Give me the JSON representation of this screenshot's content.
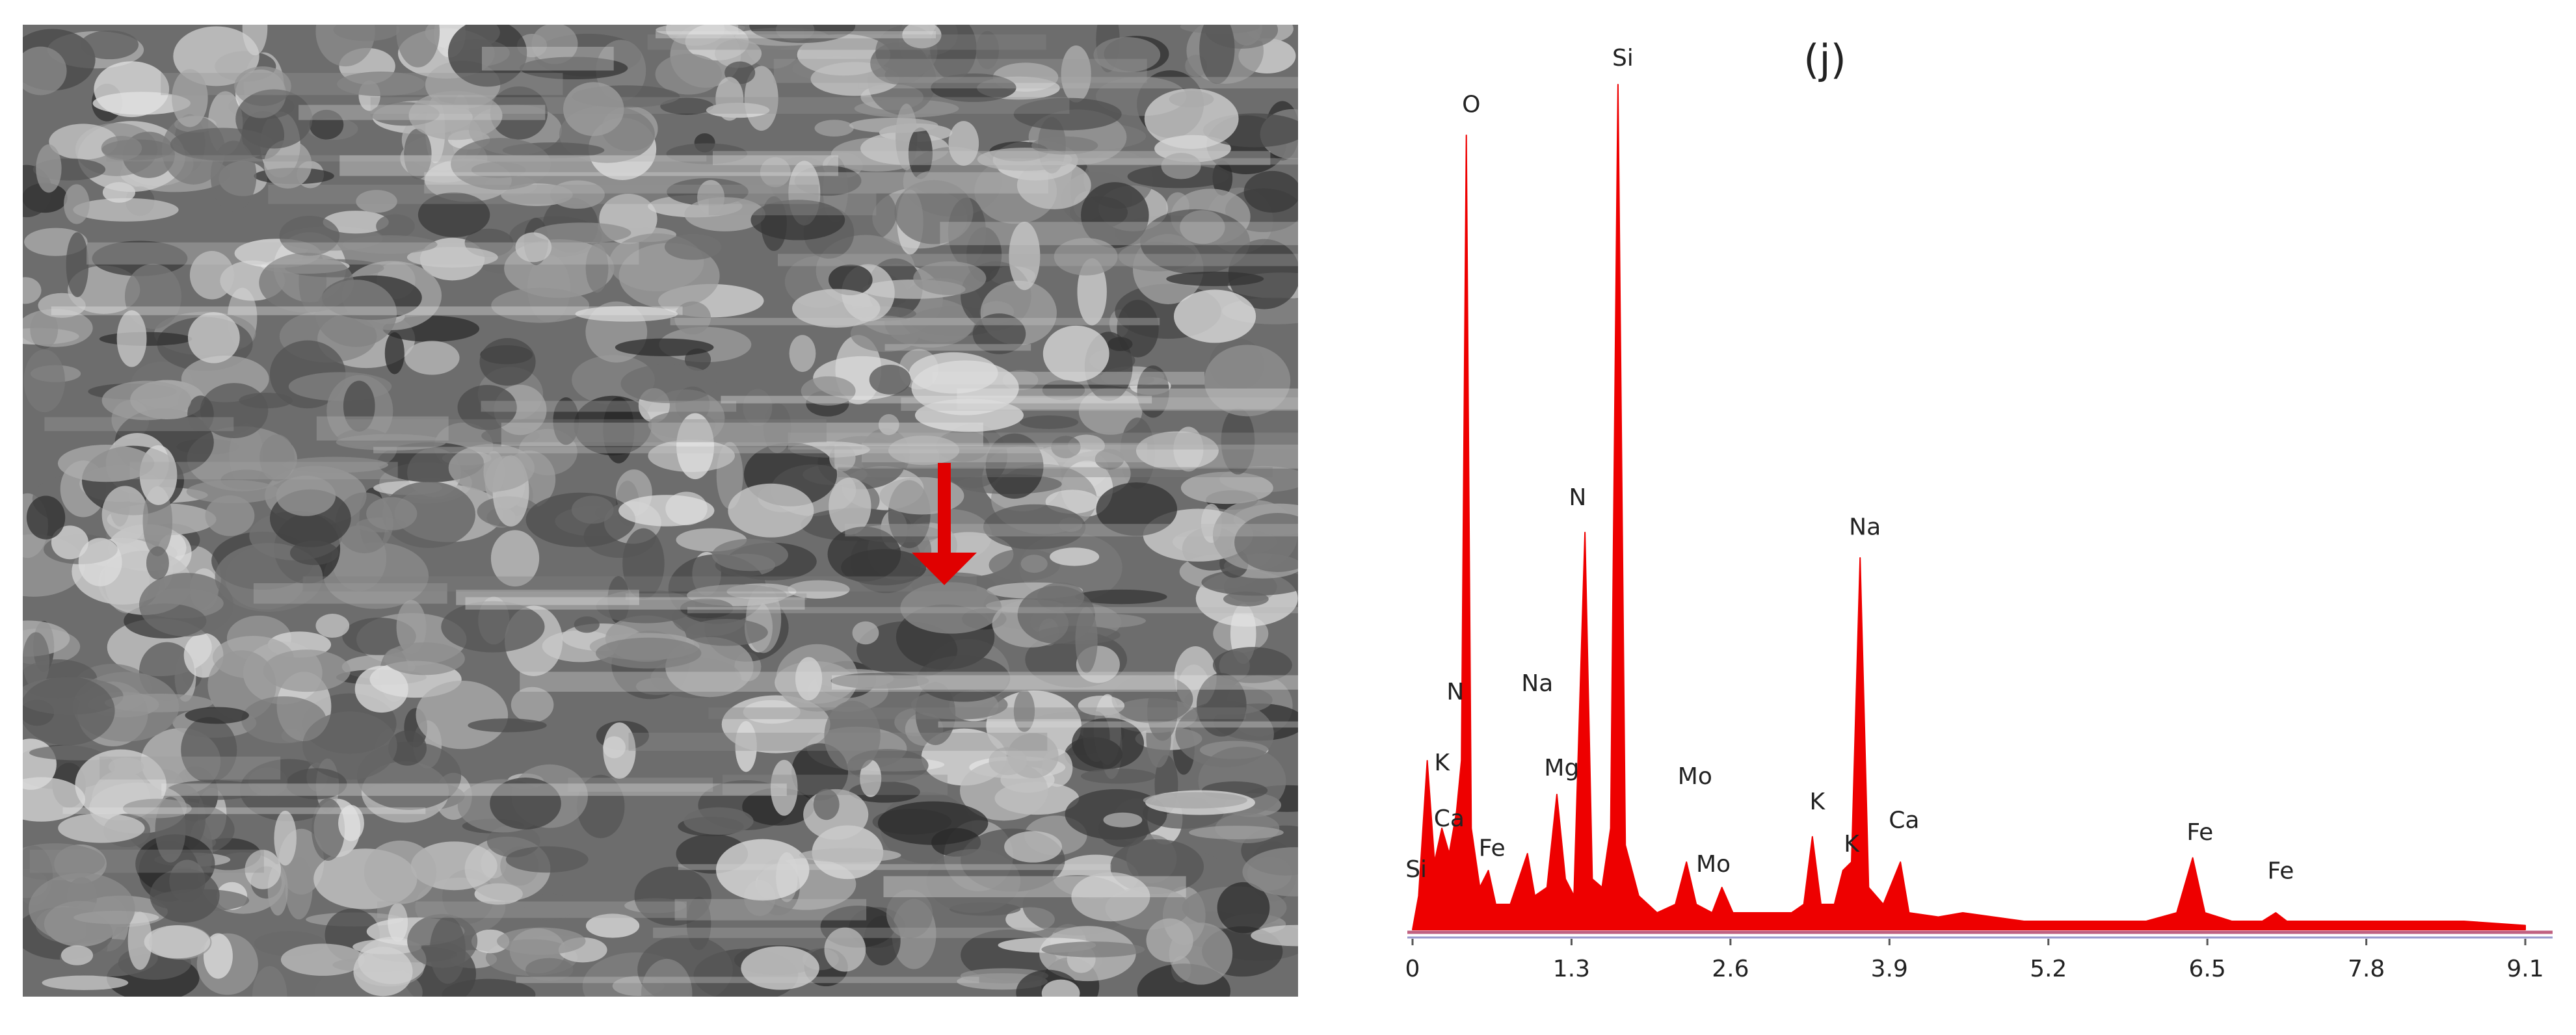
{
  "chart_data": {
    "type": "area",
    "title": "(j)",
    "color": "#ee0000",
    "x": [
      0.0,
      0.05,
      0.12,
      0.18,
      0.24,
      0.3,
      0.36,
      0.4,
      0.44,
      0.48,
      0.55,
      0.62,
      0.68,
      0.8,
      0.94,
      1.0,
      1.1,
      1.18,
      1.25,
      1.32,
      1.41,
      1.47,
      1.55,
      1.62,
      1.68,
      1.74,
      1.85,
      2.0,
      2.15,
      2.24,
      2.32,
      2.45,
      2.53,
      2.62,
      2.9,
      3.1,
      3.2,
      3.27,
      3.34,
      3.45,
      3.52,
      3.59,
      3.66,
      3.73,
      3.85,
      3.99,
      4.06,
      4.3,
      4.5,
      5.0,
      5.5,
      6.0,
      6.25,
      6.38,
      6.48,
      6.7,
      6.95,
      7.06,
      7.15,
      8.0,
      8.6,
      9.1
    ],
    "values": [
      0,
      4,
      20,
      8,
      12,
      9,
      14,
      20,
      94,
      12,
      5,
      7,
      3,
      3,
      9,
      4,
      5,
      16,
      6,
      4,
      47,
      6,
      5,
      12,
      100,
      10,
      4,
      2,
      3,
      8,
      3,
      2,
      5,
      2,
      2,
      2,
      3,
      11,
      3,
      3,
      7,
      8,
      44,
      5,
      3,
      8,
      2,
      1.5,
      2,
      1,
      1,
      1,
      2,
      8.5,
      2,
      1,
      1,
      2,
      1,
      1,
      1,
      0.5
    ],
    "xlim": [
      0,
      9.1
    ],
    "xticks": [
      0,
      1.3,
      2.6,
      3.9,
      5.2,
      6.5,
      7.8,
      9.1
    ],
    "ylim": [
      0,
      110
    ],
    "annotations": [
      {
        "text": "Si",
        "x": 0.03,
        "y": 7
      },
      {
        "text": "K",
        "x": 0.24,
        "y": 19.6
      },
      {
        "text": "Ca",
        "x": 0.3,
        "y": 13
      },
      {
        "text": "N",
        "x": 0.35,
        "y": 28
      },
      {
        "text": "O",
        "x": 0.48,
        "y": 97.5
      },
      {
        "text": "Fe",
        "x": 0.65,
        "y": 9.5
      },
      {
        "text": "Na",
        "x": 1.02,
        "y": 29
      },
      {
        "text": "Mg",
        "x": 1.22,
        "y": 19
      },
      {
        "text": "N",
        "x": 1.35,
        "y": 51
      },
      {
        "text": "Si",
        "x": 1.72,
        "y": 103
      },
      {
        "text": "Mo",
        "x": 2.31,
        "y": 18
      },
      {
        "text": "Mo",
        "x": 2.46,
        "y": 7.6
      },
      {
        "text": "K",
        "x": 3.31,
        "y": 15
      },
      {
        "text": "K",
        "x": 3.59,
        "y": 10
      },
      {
        "text": "Na",
        "x": 3.7,
        "y": 47.5
      },
      {
        "text": "Ca",
        "x": 4.02,
        "y": 12.8
      },
      {
        "text": "Fe",
        "x": 6.44,
        "y": 11.4
      },
      {
        "text": "Fe",
        "x": 7.1,
        "y": 6.8
      }
    ]
  }
}
